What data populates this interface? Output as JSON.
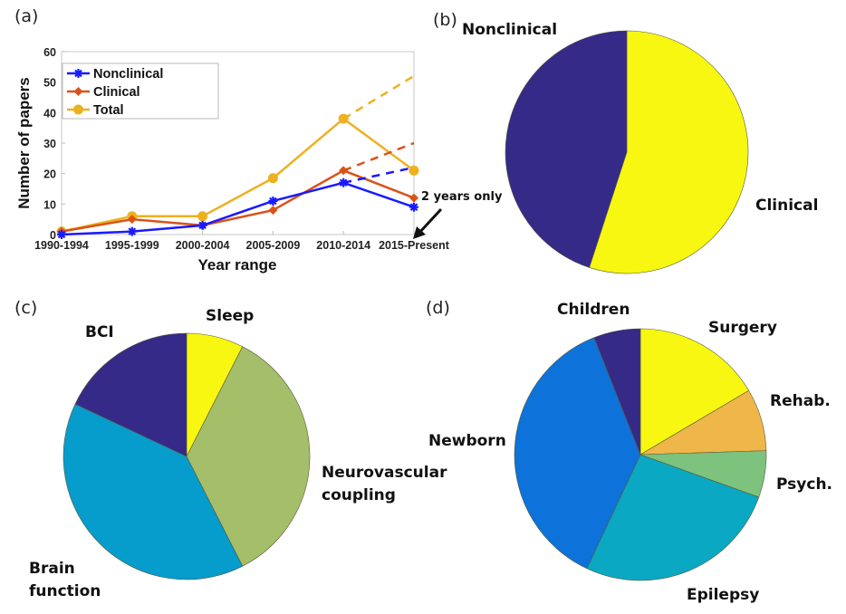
{
  "chart_data": [
    {
      "id": "a",
      "panel_label": "(a)",
      "type": "line",
      "xlabel": "Year range",
      "ylabel": "Number of papers",
      "categories": [
        "1990-1994",
        "1995-1999",
        "2000-2004",
        "2005-2009",
        "2010-2014",
        "2015-Present"
      ],
      "ylim": [
        0,
        60
      ],
      "yticks": [
        0,
        10,
        20,
        30,
        40,
        50,
        60
      ],
      "grid": false,
      "legend_position": "top-left",
      "series": [
        {
          "name": "Nonclinical",
          "color": "#1a1aff",
          "marker": "star",
          "values": [
            0,
            1,
            3,
            11,
            17,
            9
          ],
          "projection": {
            "from_category": "2010-2014",
            "value": 22
          }
        },
        {
          "name": "Clinical",
          "color": "#d95319",
          "marker": "diamond",
          "values": [
            1,
            5,
            3,
            8,
            21,
            12
          ],
          "projection": {
            "from_category": "2010-2014",
            "value": 30
          }
        },
        {
          "name": "Total",
          "color": "#edb120",
          "marker": "circle",
          "values": [
            1,
            6,
            6,
            18.5,
            38,
            21
          ],
          "projection": {
            "from_category": "2010-2014",
            "value": 52
          }
        }
      ],
      "annotation": {
        "text": "2 years only",
        "points_to": "2015-Present"
      }
    },
    {
      "id": "b",
      "panel_label": "(b)",
      "type": "pie",
      "slices": [
        {
          "label": "Clinical",
          "value": 55,
          "color": "#f7f712"
        },
        {
          "label": "Nonclinical",
          "value": 45,
          "color": "#352a87"
        }
      ]
    },
    {
      "id": "c",
      "panel_label": "(c)",
      "type": "pie",
      "slices": [
        {
          "label": "Sleep",
          "value": 7.5,
          "color": "#f7f712"
        },
        {
          "label": "Neurovascular coupling",
          "value": 35,
          "color": "#a5be6a"
        },
        {
          "label": "Brain function",
          "value": 39.5,
          "color": "#069ccc"
        },
        {
          "label": "BCI",
          "value": 18,
          "color": "#352a87"
        }
      ]
    },
    {
      "id": "d",
      "panel_label": "(d)",
      "type": "pie",
      "slices": [
        {
          "label": "Surgery",
          "value": 16.5,
          "color": "#f7f712"
        },
        {
          "label": "Rehab.",
          "value": 8,
          "color": "#efb649"
        },
        {
          "label": "Psych.",
          "value": 6,
          "color": "#7dc27d"
        },
        {
          "label": "Epilepsy",
          "value": 26.5,
          "color": "#0aa8c2"
        },
        {
          "label": "Newborn",
          "value": 37,
          "color": "#0d72d9"
        },
        {
          "label": "Children",
          "value": 6,
          "color": "#352a87"
        }
      ]
    }
  ],
  "labels": {
    "a": "(a)",
    "b": "(b)",
    "c": "(c)",
    "d": "(d)",
    "b_nonclinical": "Nonclinical",
    "b_clinical": "Clinical",
    "c_sleep": "Sleep",
    "c_bci": "BCI",
    "c_neuro_1": "Neurovascular",
    "c_neuro_2": "coupling",
    "c_brain_1": "Brain",
    "c_brain_2": "function",
    "d_children": "Children",
    "d_surgery": "Surgery",
    "d_rehab": "Rehab.",
    "d_psych": "Psych.",
    "d_newborn": "Newborn",
    "d_epilepsy": "Epilepsy"
  }
}
